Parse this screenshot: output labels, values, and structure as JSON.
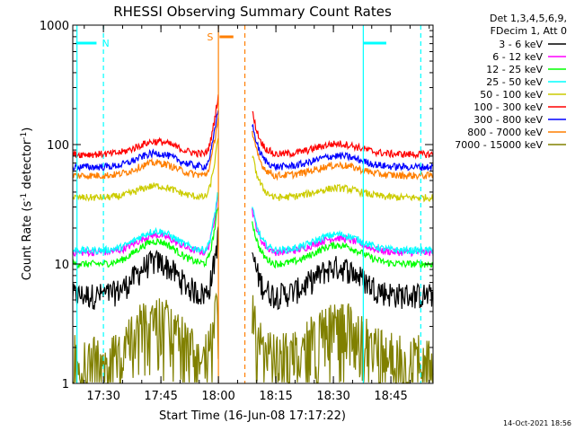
{
  "chart_data": {
    "type": "line",
    "title": "RHESSI Observing Summary Count Rates",
    "xlabel": "Start Time (16-Jun-08 17:17:22)",
    "ylabel_main": "Count Rate (s",
    "ylabel_sup1": "-1",
    "ylabel_mid": " detector",
    "ylabel_sup2": "-1",
    "ylabel_end": ")",
    "yscale": "log",
    "ylim": [
      1,
      1000
    ],
    "xlim_minutes": [
      17.3667,
      18.9333
    ],
    "x_ticks": [
      {
        "label": "17:30",
        "t": 17.5
      },
      {
        "label": "17:45",
        "t": 17.75
      },
      {
        "label": "18:00",
        "t": 18.0
      },
      {
        "label": "18:15",
        "t": 18.25
      },
      {
        "label": "18:30",
        "t": 18.5
      },
      {
        "label": "18:45",
        "t": 18.75
      }
    ],
    "y_ticks": [
      {
        "label": "1",
        "v": 1
      },
      {
        "label": "10",
        "v": 10
      },
      {
        "label": "100",
        "v": 100
      },
      {
        "label": "1000",
        "v": 1000
      }
    ],
    "legend_header": [
      "Det 1,3,4,5,6,9,",
      "FDecim 1, Att 0"
    ],
    "series": [
      {
        "name": "3 - 6 keV",
        "color": "#000000",
        "base": 5.5,
        "bump": 1.9
      },
      {
        "name": "6 - 12 keV",
        "color": "#ff00ff",
        "base": 12.5,
        "bump": 1.4
      },
      {
        "name": "12 - 25 keV",
        "color": "#00ff00",
        "base": 10.0,
        "bump": 1.55
      },
      {
        "name": "25 - 50 keV",
        "color": "#00ffff",
        "base": 13.0,
        "bump": 1.45
      },
      {
        "name": "50 - 100 keV",
        "color": "#cccc00",
        "base": 36.0,
        "bump": 1.25
      },
      {
        "name": "100 - 300 keV",
        "color": "#ff0000",
        "base": 83.0,
        "bump": 1.28
      },
      {
        "name": "300 - 800 keV",
        "color": "#0000ff",
        "base": 65.0,
        "bump": 1.3
      },
      {
        "name": "800 - 7000 keV",
        "color": "#ff7f00",
        "base": 55.0,
        "bump": 1.28
      },
      {
        "name": "7000 - 15000 keV",
        "color": "#808000",
        "base": 1.5,
        "bump": 2.2
      }
    ],
    "flags": [
      {
        "label": "N",
        "color": "#00ffff",
        "segments": [
          [
            17.38,
            17.47
          ],
          [
            18.63,
            18.73
          ]
        ]
      },
      {
        "label": "S",
        "color": "#ff7f00",
        "segments": [
          [
            18.005,
            18.065
          ]
        ]
      }
    ],
    "vlines": [
      {
        "t": 17.385,
        "color": "#00ffff",
        "dash": false
      },
      {
        "t": 17.5,
        "color": "#00ffff",
        "dash": true
      },
      {
        "t": 18.63,
        "color": "#00ffff",
        "dash": false
      },
      {
        "t": 18.88,
        "color": "#00ffff",
        "dash": true
      },
      {
        "t": 18.0,
        "color": "#ff7f00",
        "dash": false
      },
      {
        "t": 18.115,
        "color": "#ff7f00",
        "dash": true
      }
    ],
    "gap": [
      18.0,
      18.115
    ],
    "timestamp": "14-Oct-2021 18:56"
  }
}
